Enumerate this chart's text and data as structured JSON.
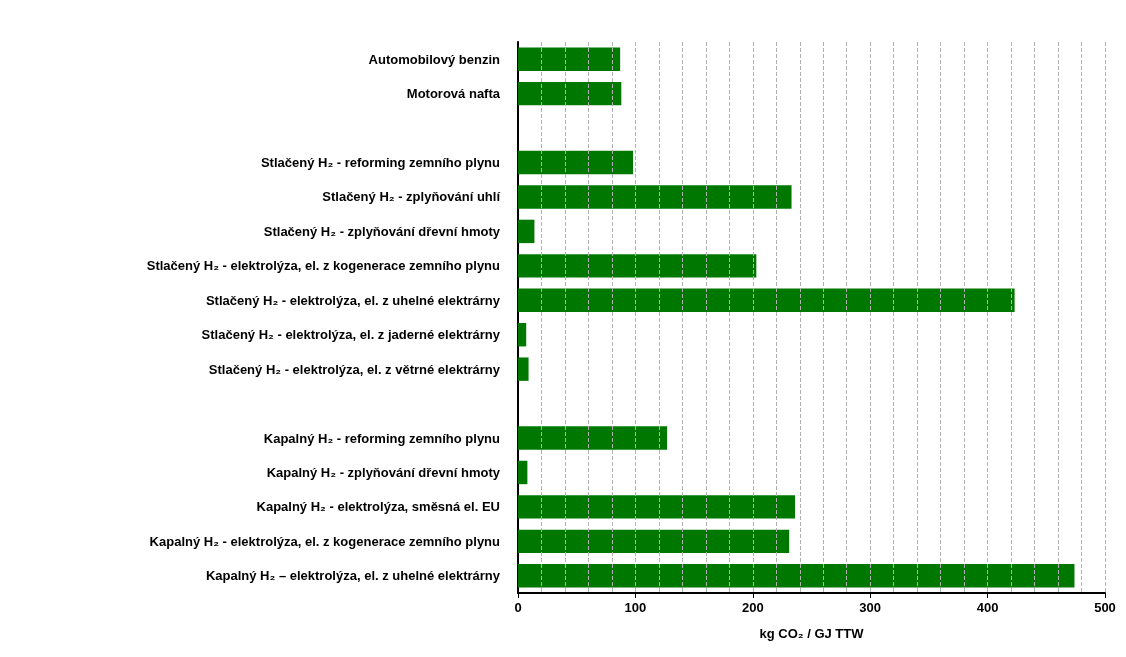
{
  "chart_data": {
    "type": "bar",
    "orientation": "horizontal",
    "xlabel": "kg CO₂ / GJ TTW",
    "categories": [
      "Automobilový benzin",
      "Motorová nafta",
      null,
      "Stlačený H₂ - reforming zemního plynu",
      "Stlačený H₂ - zplyňování uhlí",
      "Stlačený H₂ - zplyňování dřevní hmoty",
      "Stlačený H₂ - elektrolýza, el. z kogenerace zemního plynu",
      "Stlačený H₂ - elektrolýza, el. z uhelné elektrárny",
      "Stlačený H₂ - elektrolýza, el. z jaderné elektrárny",
      "Stlačený H₂ - elektrolýza, el. z větrné elektrárny",
      null,
      "Kapalný H₂ - reforming zemního plynu",
      "Kapalný H₂ - zplyňování dřevní hmoty",
      "Kapalný H₂ - elektrolýza, směsná el. EU",
      "Kapalný H₂ - elektrolýza, el. z kogenerace zemního plynu",
      "Kapalný H₂ – elektrolýza, el. z uhelné elektrárny"
    ],
    "values": [
      87,
      88,
      null,
      98,
      233,
      14,
      203,
      423,
      7,
      9,
      null,
      127,
      8,
      236,
      231,
      474
    ],
    "color": "#007800",
    "xlim": [
      0,
      500
    ],
    "xticks": [
      0,
      {
        "value": 20,
        "label": null
      },
      {
        "value": 40,
        "label": null
      },
      {
        "value": 60,
        "label": null
      },
      {
        "value": 80,
        "label": null
      },
      100,
      {
        "value": 120,
        "label": null
      },
      {
        "value": 140,
        "label": null
      },
      {
        "value": 160,
        "label": null
      },
      {
        "value": 180,
        "label": null
      },
      200,
      {
        "value": 220,
        "label": null
      },
      {
        "value": 240,
        "label": null
      },
      {
        "value": 260,
        "label": null
      },
      {
        "value": 280,
        "label": null
      },
      300,
      {
        "value": 320,
        "label": null
      },
      {
        "value": 340,
        "label": null
      },
      {
        "value": 360,
        "label": null
      },
      {
        "value": 380,
        "label": null
      },
      400,
      {
        "value": 420,
        "label": null
      },
      {
        "value": 440,
        "label": null
      },
      {
        "value": 460,
        "label": null
      },
      {
        "value": 480,
        "label": null
      },
      500
    ],
    "grid": "x"
  }
}
